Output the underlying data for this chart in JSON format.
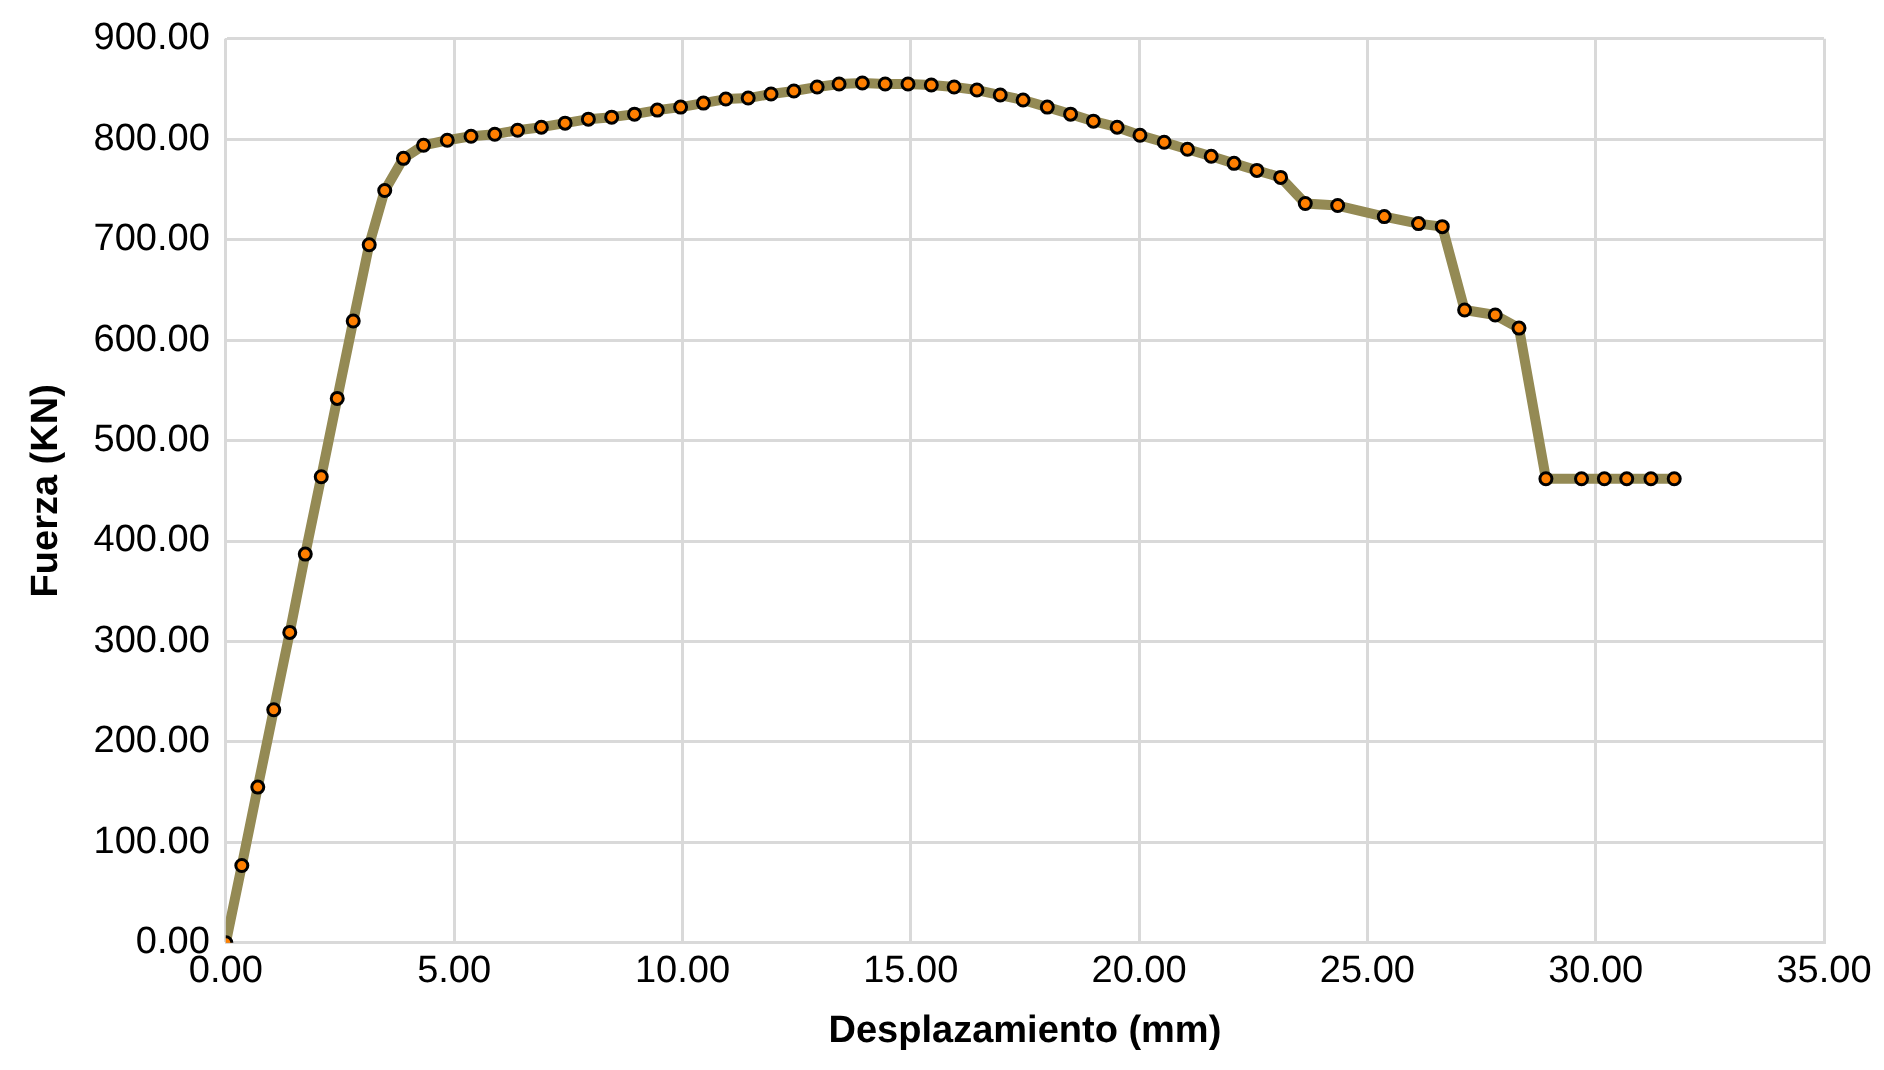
{
  "chart_data": {
    "type": "line",
    "xlabel": "Desplazamiento (mm)",
    "ylabel": "Fuerza (KN)",
    "grid": true,
    "legend": false,
    "marker": "circle",
    "line_style": "solid",
    "xlim": [
      0,
      35
    ],
    "xticks": [
      {
        "value": 0,
        "label": "0.00"
      },
      {
        "value": 5,
        "label": "5.00"
      },
      {
        "value": 10,
        "label": "10.00"
      },
      {
        "value": 15,
        "label": "15.00"
      },
      {
        "value": 20,
        "label": "20.00"
      },
      {
        "value": 25,
        "label": "25.00"
      },
      {
        "value": 30,
        "label": "30.00"
      },
      {
        "value": 35,
        "label": "35.00"
      }
    ],
    "ylim": [
      0,
      900
    ],
    "yticks": [
      {
        "value": 0,
        "label": "0.00"
      },
      {
        "value": 100,
        "label": "100.00"
      },
      {
        "value": 200,
        "label": "200.00"
      },
      {
        "value": 300,
        "label": "300.00"
      },
      {
        "value": 400,
        "label": "400.00"
      },
      {
        "value": 500,
        "label": "500.00"
      },
      {
        "value": 600,
        "label": "600.00"
      },
      {
        "value": 700,
        "label": "700.00"
      },
      {
        "value": 800,
        "label": "800.00"
      },
      {
        "value": 900,
        "label": "900.00"
      }
    ],
    "series": [
      {
        "color": "#948a54",
        "x": [
          0,
          0.35,
          0.7,
          1.05,
          1.4,
          1.74,
          2.09,
          2.44,
          2.79,
          3.14,
          3.48,
          3.89,
          4.33,
          4.85,
          5.37,
          5.89,
          6.39,
          6.91,
          7.43,
          7.94,
          8.45,
          8.95,
          9.45,
          9.96,
          10.46,
          10.95,
          11.44,
          11.94,
          12.44,
          12.95,
          13.43,
          13.94,
          14.44,
          14.94,
          15.45,
          15.95,
          16.45,
          16.96,
          17.46,
          17.99,
          18.5,
          19.0,
          19.52,
          20.02,
          20.55,
          21.06,
          21.58,
          22.08,
          22.58,
          23.1,
          23.64,
          24.35,
          25.37,
          26.12,
          26.64,
          27.13,
          27.8,
          28.32,
          28.91,
          29.69,
          30.19,
          30.68,
          31.21,
          31.72
        ],
        "values": [
          0,
          77,
          155,
          232,
          309,
          387,
          464,
          542,
          619,
          695,
          749,
          781,
          794,
          799,
          803,
          805,
          809,
          812,
          816,
          820,
          822,
          825,
          829,
          832,
          836,
          840,
          841,
          845,
          848,
          852,
          855,
          856,
          855,
          855,
          854,
          852,
          849,
          844,
          839,
          832,
          825,
          818,
          812,
          804,
          797,
          790,
          783,
          776,
          769,
          762,
          736,
          734,
          723,
          716,
          713,
          630,
          625,
          612,
          462,
          462,
          462,
          462,
          462,
          462
        ]
      }
    ]
  }
}
